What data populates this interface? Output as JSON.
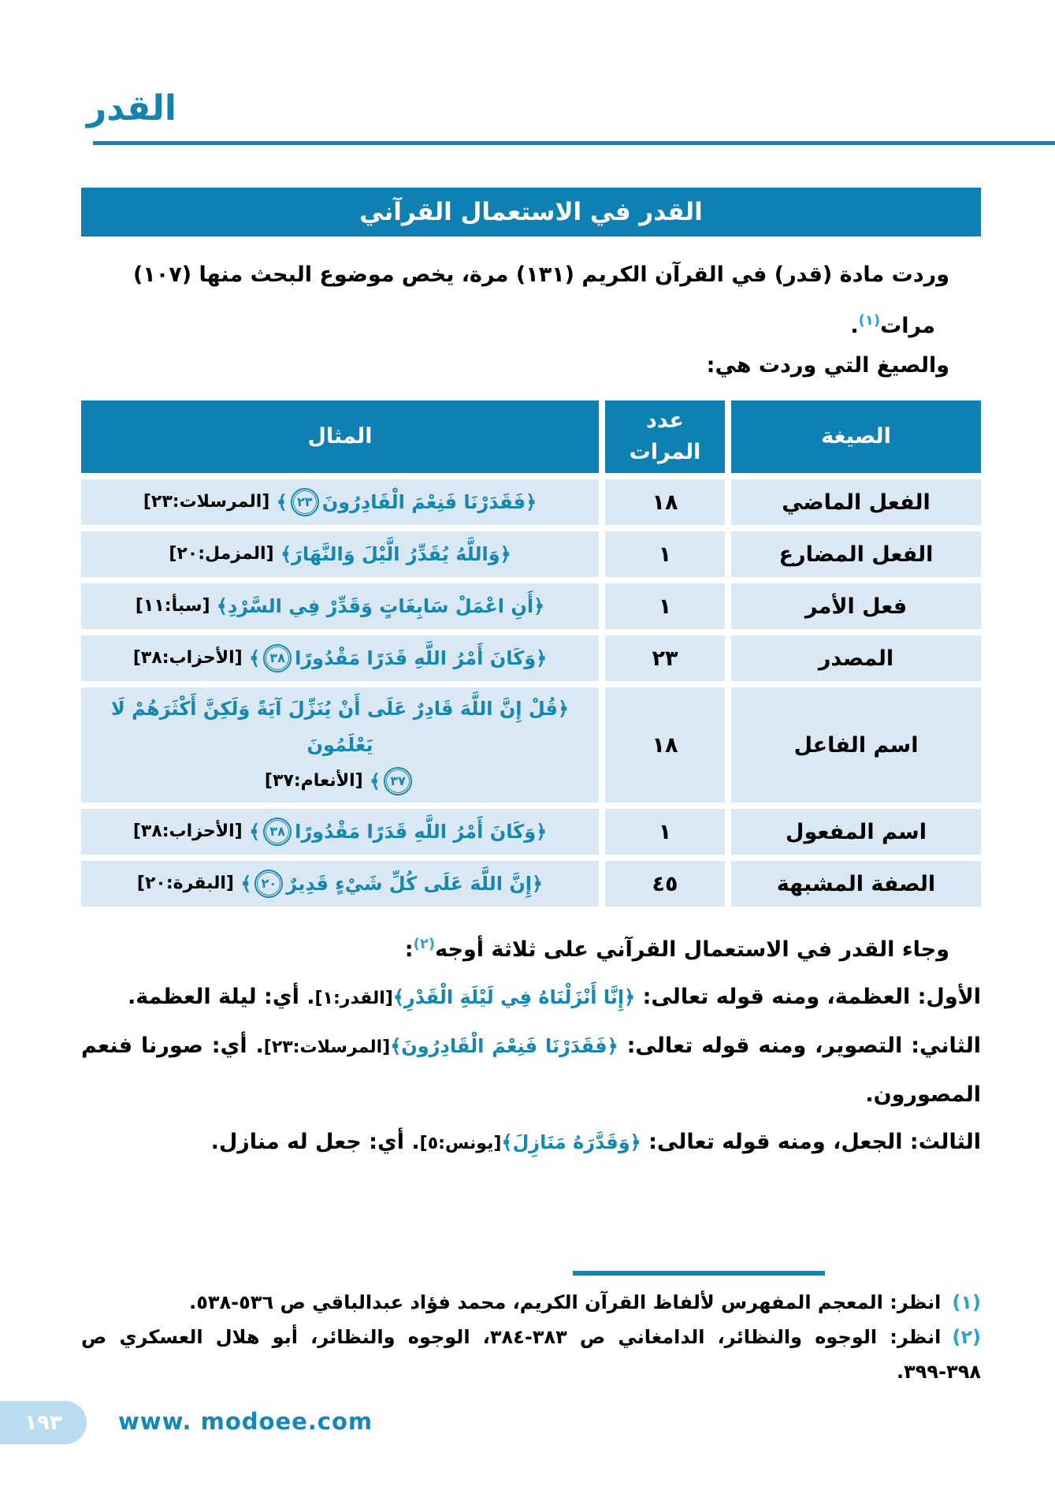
{
  "colors": {
    "teal_header": "#0e81b2",
    "teal_accent": "#1583ad",
    "quote_teal": "#1787b0",
    "row_bg": "#d9e8f3",
    "footnote_num": "#2aa2cc",
    "footer_tab_bg": "#b9dcf0",
    "website_teal": "#1486b8"
  },
  "page_header": {
    "title": "القدر"
  },
  "banner": {
    "title": "القدر في الاستعمال القرآني"
  },
  "intro": {
    "line1": "وردت مادة (قدر) في القرآن الكريم (١٣١) مرة، يخص موضوع البحث منها (١٠٧)",
    "line2_word": "مرات",
    "footnote_ref": "(١)",
    "line2_period": ".",
    "forms_lead": "والصيغ التي وردت هي:"
  },
  "table": {
    "header": {
      "form": "الصيغة",
      "count_line1": "عدد",
      "count_line2": "المرات",
      "example": "المثال"
    },
    "rows": [
      {
        "form": "الفعل الماضي",
        "count": "١٨",
        "quote": "﴿فَقَدَرْنَا فَنِعْمَ الْقَادِرُونَ",
        "ayah": "٢٣",
        "close": "﴾",
        "ref": "[المرسلات:٢٣]"
      },
      {
        "form": "الفعل المضارع",
        "count": "١",
        "quote": "﴿وَاللَّهُ يُقَدِّرُ الَّيْلَ وَالنَّهَارَ﴾",
        "ref": "[المزمل:٢٠]"
      },
      {
        "form": "فعل الأمر",
        "count": "١",
        "quote": "﴿أَنِ اعْمَلْ سَابِغَاتٍ وَقَدِّرْ فِي السَّرْدِ﴾",
        "ref": "[سبأ:١١]"
      },
      {
        "form": "المصدر",
        "count": "٢٣",
        "quote": "﴿وَكَانَ أَمْرُ اللَّهِ قَدَرًا مَقْدُورًا",
        "ayah": "٣٨",
        "close": "﴾",
        "ref": "[الأحزاب:٣٨]"
      },
      {
        "form": "اسم الفاعل",
        "count": "١٨",
        "quote": "﴿قُلْ إِنَّ اللَّهَ قَادِرٌ عَلَى أَنْ يُنَزِّلَ آيَةً وَلَكِنَّ أَكْثَرَهُمْ لَا يَعْلَمُونَ",
        "ayah": "٣٧",
        "close": "﴾",
        "ref": "[الأنعام:٣٧]"
      },
      {
        "form": "اسم المفعول",
        "count": "١",
        "quote": "﴿وَكَانَ أَمْرُ اللَّهِ قَدَرًا مَقْدُورًا",
        "ayah": "٣٨",
        "close": "﴾",
        "ref": "[الأحزاب:٣٨]"
      },
      {
        "form": "الصفة المشبهة",
        "count": "٤٥",
        "quote": "﴿إِنَّ اللَّهَ عَلَى كُلِّ شَيْءٍ قَدِيرٌ",
        "ayah": "٢٠",
        "close": "﴾",
        "ref": "[البقرة:٢٠]"
      }
    ]
  },
  "aspects": {
    "lead": "وجاء القدر في الاستعمال القرآني على ثلاثة أوجه",
    "lead_footnote_ref": "(٢)",
    "lead_tail": ":",
    "items": [
      {
        "label": "الأول:",
        "text": " العظمة، ومنه قوله تعالى: ",
        "quote": "﴿إِنَّا أَنْزَلْنَاهُ فِي لَيْلَةِ الْقَدْرِ﴾",
        "ref": "[القدر:١]",
        "tail": ". أي: ليلة العظمة."
      },
      {
        "label": "الثاني:",
        "text": " التصوير، ومنه قوله تعالى: ",
        "quote": "﴿فَقَدَرْنَا فَنِعْمَ الْقَادِرُونَ﴾",
        "ref": "[المرسلات:٢٣]",
        "tail": ". أي: صورنا فنعم المصورون."
      },
      {
        "label": "الثالث:",
        "text": " الجعل، ومنه قوله تعالى: ",
        "quote": "﴿وَقَدَّرَهُ مَنَازِلَ﴾",
        "ref": "[يونس:٥]",
        "tail": ". أي: جعل له منازل."
      }
    ]
  },
  "footnotes": [
    {
      "num": "(١)",
      "text": "انظر: المعجم المفهرس لألفاظ القرآن الكريم، محمد فؤاد عبدالباقي ص ٥٣٦-٥٣٨."
    },
    {
      "num": "(٢)",
      "text": "انظر: الوجوه والنظائر، الدامغاني ص ٣٨٣-٣٨٤، الوجوه والنظائر، أبو هلال العسكري ص ٣٩٨-٣٩٩."
    }
  ],
  "footer": {
    "page_number": "١٩٣",
    "website": "www. modoee.com"
  }
}
